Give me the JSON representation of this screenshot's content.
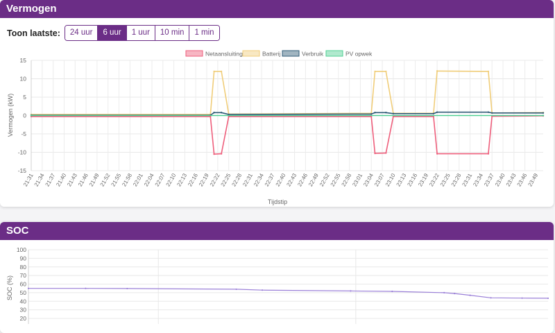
{
  "power_card": {
    "title": "Vermogen",
    "range_label": "Toon laatste:",
    "range_buttons": [
      "24 uur",
      "6 uur",
      "1 uur",
      "10 min",
      "1 min"
    ],
    "active_range": "6 uur"
  },
  "soc_card": {
    "title": "SOC"
  },
  "colors": {
    "header": "#6b2d86",
    "netaansluiting": "#ee5e7b",
    "batterij": "#f0cd79",
    "verbruik": "#2e5a76",
    "pv_opwek": "#4fcf93",
    "soc_line": "#9a7fd8"
  },
  "chart_data": [
    {
      "type": "line",
      "title": "",
      "xlabel": "Tijdstip",
      "ylabel": "Vermogen (kW)",
      "ylim": [
        -15,
        15
      ],
      "yticks": [
        15,
        10,
        5,
        0,
        -5,
        -10,
        -15
      ],
      "grid": true,
      "legend_position": "top",
      "x_ticks": [
        "21:31",
        "21:34",
        "21:37",
        "21:40",
        "21:43",
        "21:46",
        "21:49",
        "21:52",
        "21:55",
        "21:58",
        "22:01",
        "22:04",
        "22:07",
        "22:10",
        "22:13",
        "22:16",
        "22:19",
        "22:22",
        "22:25",
        "22:28",
        "22:31",
        "22:34",
        "22:37",
        "22:40",
        "22:43",
        "22:46",
        "22:49",
        "22:52",
        "22:55",
        "22:58",
        "23:01",
        "23:04",
        "23:07",
        "23:10",
        "23:13",
        "23:16",
        "23:19",
        "23:22",
        "23:25",
        "23:28",
        "23:31",
        "23:34",
        "23:37",
        "23:40",
        "23:43",
        "23:46",
        "23:49"
      ],
      "series": [
        {
          "name": "Netaansluiting",
          "x": [
            "21:31",
            "22:20",
            "22:21",
            "22:23",
            "22:25",
            "23:04",
            "23:05",
            "23:08",
            "23:10",
            "23:21",
            "23:22",
            "23:36",
            "23:37",
            "23:51"
          ],
          "values": [
            -0.3,
            -0.3,
            -10.5,
            -10.4,
            -0.3,
            -0.3,
            -10.3,
            -10.2,
            -0.3,
            -0.3,
            -10.4,
            -10.4,
            -0.2,
            -0.1
          ]
        },
        {
          "name": "Batterij",
          "x": [
            "21:31",
            "22:20",
            "22:21",
            "22:23",
            "22:25",
            "23:04",
            "23:05",
            "23:08",
            "23:10",
            "23:21",
            "23:22",
            "23:36",
            "23:37",
            "23:51"
          ],
          "values": [
            0.3,
            0.3,
            12.0,
            12.0,
            0.4,
            0.6,
            12.0,
            12.0,
            0.6,
            0.6,
            12.1,
            12.0,
            0.7,
            0.8
          ]
        },
        {
          "name": "Verbruik",
          "x": [
            "21:31",
            "22:20",
            "22:21",
            "22:23",
            "22:25",
            "23:04",
            "23:05",
            "23:08",
            "23:10",
            "23:21",
            "23:22",
            "23:36",
            "23:37",
            "23:51"
          ],
          "values": [
            0.1,
            0.1,
            0.8,
            0.8,
            0.3,
            0.4,
            0.8,
            0.8,
            0.5,
            0.5,
            0.9,
            0.9,
            0.7,
            0.7
          ]
        },
        {
          "name": "PV opwek",
          "x": [
            "21:31",
            "23:51"
          ],
          "values": [
            0.0,
            0.0
          ]
        }
      ]
    },
    {
      "type": "line",
      "title": "",
      "xlabel": "",
      "ylabel": "SOC (%)",
      "ylim": [
        20,
        100
      ],
      "yticks": [
        100,
        90,
        80,
        70,
        60,
        50,
        40,
        30,
        20
      ],
      "grid": true,
      "series": [
        {
          "name": "",
          "points": [
            [
              0,
              55
            ],
            [
              11,
              55
            ],
            [
              19,
              54.8
            ],
            [
              40,
              54
            ],
            [
              45,
              53
            ],
            [
              62,
              52
            ],
            [
              70,
              51.5
            ],
            [
              80,
              50
            ],
            [
              82,
              49
            ],
            [
              85,
              47
            ],
            [
              89,
              44
            ],
            [
              95,
              43.7
            ],
            [
              100,
              43.5
            ]
          ]
        }
      ]
    }
  ]
}
